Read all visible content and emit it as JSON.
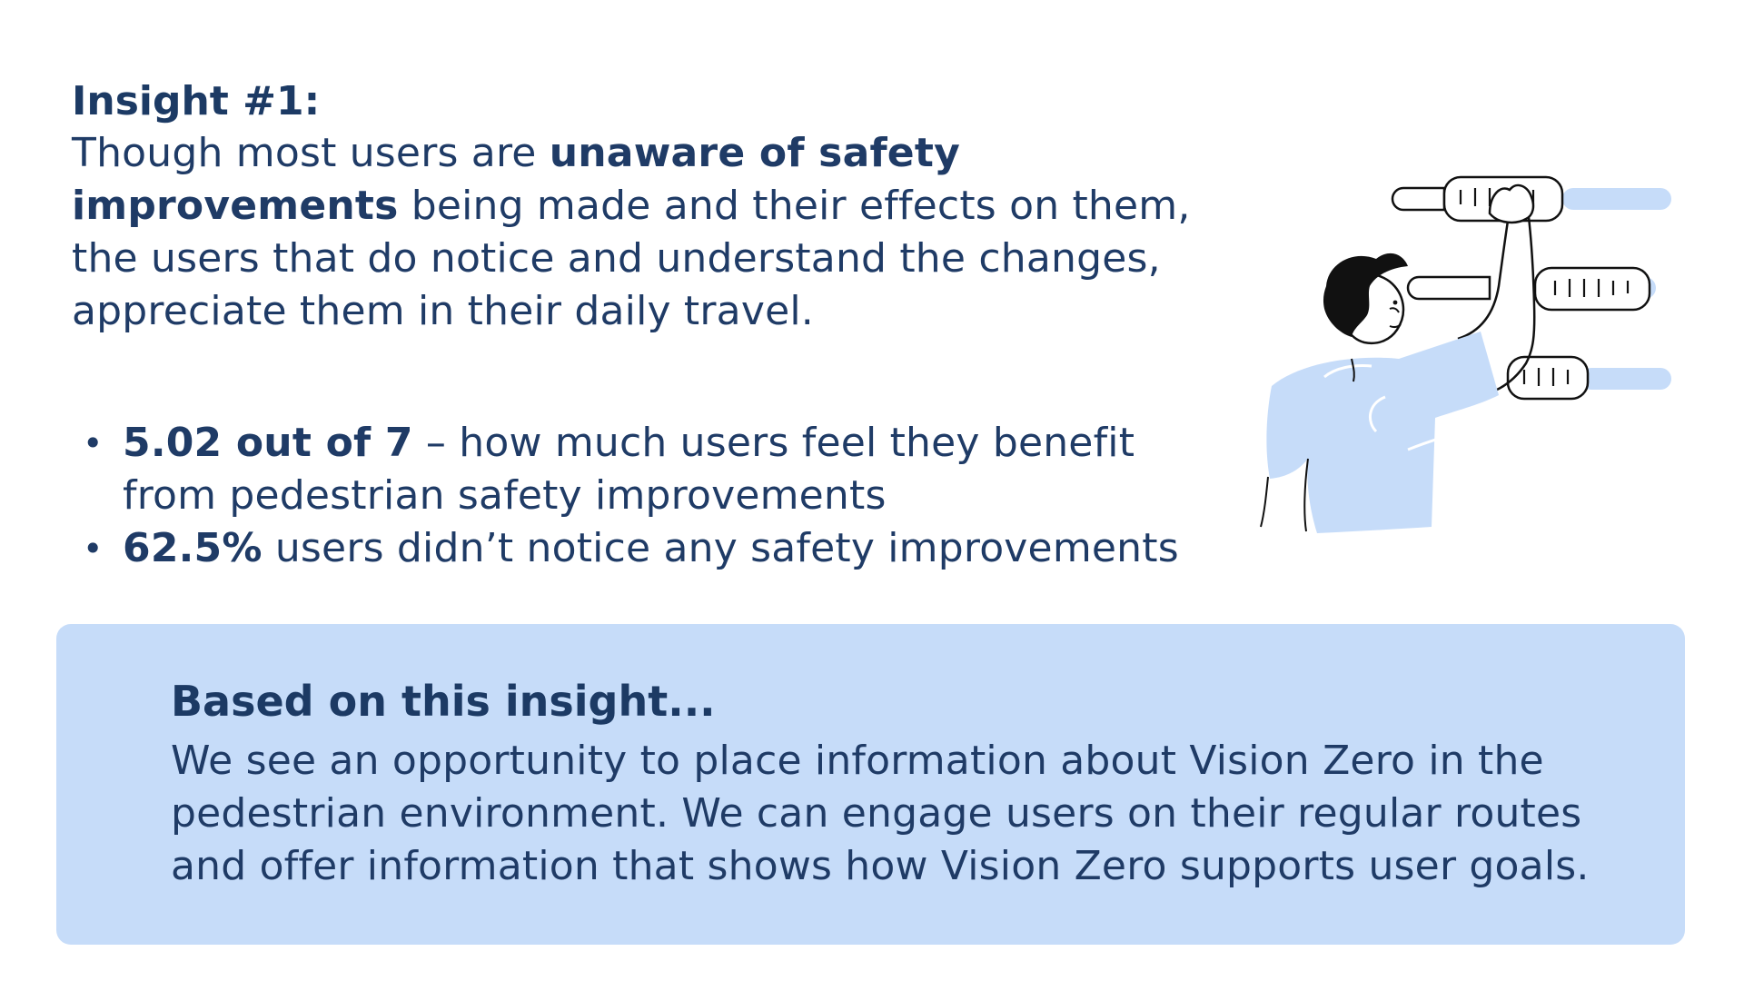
{
  "insight": {
    "title": "Insight #1:",
    "body_part1": "Though most users are ",
    "body_bold1": "unaware of safety improvements",
    "body_part2": " being made and their effects on them, the users that do notice and understand the changes, appreciate them in their daily travel."
  },
  "stats": [
    {
      "bold": "5.02 out of 7",
      "text": " – how much users feel they benefit from pedestrian safety improvements"
    },
    {
      "bold": "62.5%",
      "text": " users didn’t notice any safety improvements"
    }
  ],
  "callout": {
    "title": "Based on this insight...",
    "body": "We see an opportunity to place information about Vision Zero in the pedestrian environment. We can engage users on their regular routes and offer information that shows how Vision Zero supports user goals."
  },
  "colors": {
    "text": "#1f3b66",
    "callout_bg": "#c6dcf9",
    "illustration_fill": "#c6dcf9"
  },
  "icons": {
    "illustration": "person-adjusting-sliders-illustration"
  }
}
